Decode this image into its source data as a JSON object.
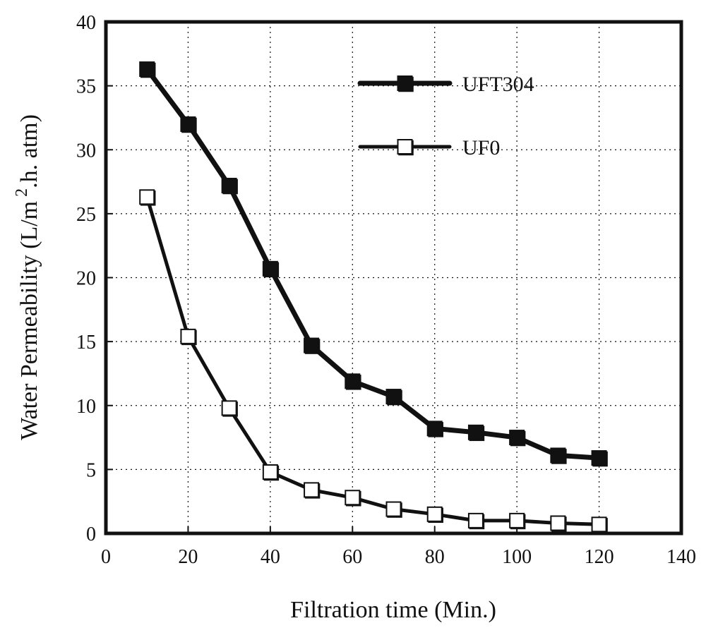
{
  "chart_data": {
    "type": "line",
    "title": "",
    "xlabel": "Filtration time (Min.)",
    "ylabel": {
      "prefix": "Water Permeability (L/m",
      "superscript": "2",
      "suffix": ".h. atm)"
    },
    "xlim": [
      0,
      140
    ],
    "ylim": [
      0,
      40
    ],
    "xticks": [
      0,
      20,
      40,
      60,
      80,
      100,
      120,
      140
    ],
    "yticks": [
      0,
      5,
      10,
      15,
      20,
      25,
      30,
      35,
      40
    ],
    "grid": true,
    "legend_position": "top-right",
    "series": [
      {
        "name": "UFT304",
        "marker": "filled-square",
        "line_style": "thick",
        "color": "#111111",
        "x": [
          10,
          20,
          30,
          40,
          50,
          60,
          70,
          80,
          90,
          100,
          110,
          120
        ],
        "y": [
          36.3,
          32.0,
          27.2,
          20.7,
          14.7,
          11.9,
          10.7,
          8.2,
          7.9,
          7.5,
          6.1,
          5.9
        ]
      },
      {
        "name": "UF0",
        "marker": "open-square",
        "line_style": "thin",
        "color": "#111111",
        "x": [
          10,
          20,
          30,
          40,
          50,
          60,
          70,
          80,
          90,
          100,
          110,
          120
        ],
        "y": [
          26.3,
          15.4,
          9.8,
          4.8,
          3.4,
          2.8,
          1.9,
          1.5,
          1.0,
          1.0,
          0.8,
          0.7
        ]
      }
    ]
  }
}
